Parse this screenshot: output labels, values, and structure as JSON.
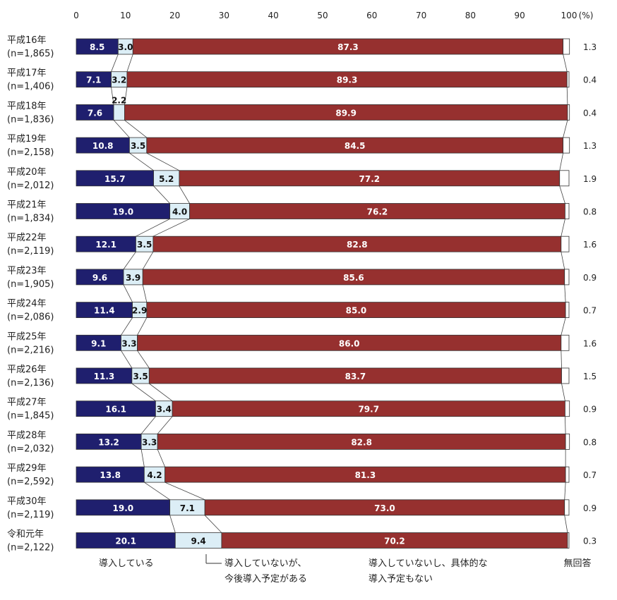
{
  "chart_data": {
    "type": "bar",
    "orientation": "horizontal",
    "stacked": true,
    "percent_unit": "(%)",
    "xlim": [
      0,
      100
    ],
    "x_ticks": [
      "0",
      "10",
      "20",
      "30",
      "40",
      "50",
      "60",
      "70",
      "80",
      "90",
      "100"
    ],
    "categories": [
      {
        "label": "平成16年",
        "n": "(n=1,865)"
      },
      {
        "label": "平成17年",
        "n": "(n=1,406)"
      },
      {
        "label": "平成18年",
        "n": "(n=1,836)"
      },
      {
        "label": "平成19年",
        "n": "(n=2,158)"
      },
      {
        "label": "平成20年",
        "n": "(n=2,012)"
      },
      {
        "label": "平成21年",
        "n": "(n=1,834)"
      },
      {
        "label": "平成22年",
        "n": "(n=2,119)"
      },
      {
        "label": "平成23年",
        "n": "(n=1,905)"
      },
      {
        "label": "平成24年",
        "n": "(n=2,086)"
      },
      {
        "label": "平成25年",
        "n": "(n=2,216)"
      },
      {
        "label": "平成26年",
        "n": "(n=2,136)"
      },
      {
        "label": "平成27年",
        "n": "(n=1,845)"
      },
      {
        "label": "平成28年",
        "n": "(n=2,032)"
      },
      {
        "label": "平成29年",
        "n": "(n=2,592)"
      },
      {
        "label": "平成30年",
        "n": "(n=2,119)"
      },
      {
        "label": "令和元年",
        "n": "(n=2,122)"
      }
    ],
    "series": [
      {
        "name": "導入している",
        "color": "#1f1f6e",
        "values": [
          8.5,
          7.1,
          7.6,
          10.8,
          15.7,
          19.0,
          12.1,
          9.6,
          11.4,
          9.1,
          11.3,
          16.1,
          13.2,
          13.8,
          19.0,
          20.1
        ]
      },
      {
        "name": "導入していないが、\n今後導入予定がある",
        "color": "#dceef6",
        "values": [
          3.0,
          3.2,
          2.2,
          3.5,
          5.2,
          4.0,
          3.5,
          3.9,
          2.9,
          3.3,
          3.5,
          3.4,
          3.3,
          4.2,
          7.1,
          9.4
        ]
      },
      {
        "name": "導入していないし、具体的な\n導入予定もない",
        "color": "#96302f",
        "values": [
          87.3,
          89.3,
          89.9,
          84.5,
          77.2,
          76.2,
          82.8,
          85.6,
          85.0,
          86.0,
          83.7,
          79.7,
          82.8,
          81.3,
          73.0,
          70.2
        ]
      },
      {
        "name": "無回答",
        "color": "#ffffff",
        "values": [
          1.3,
          0.4,
          0.4,
          1.3,
          1.9,
          0.8,
          1.6,
          0.9,
          0.7,
          1.6,
          1.5,
          0.9,
          0.8,
          0.7,
          0.9,
          0.3
        ]
      }
    ],
    "value_labels": {
      "s0": [
        "8.5",
        "7.1",
        "7.6",
        "10.8",
        "15.7",
        "19.0",
        "12.1",
        "9.6",
        "11.4",
        "9.1",
        "11.3",
        "16.1",
        "13.2",
        "13.8",
        "19.0",
        "20.1"
      ],
      "s1": [
        "3.0",
        "3.2",
        "2.2",
        "3.5",
        "5.2",
        "4.0",
        "3.5",
        "3.9",
        "2.9",
        "3.3",
        "3.5",
        "3.4",
        "3.3",
        "4.2",
        "7.1",
        "9.4"
      ],
      "s2": [
        "87.3",
        "89.3",
        "89.9",
        "84.5",
        "77.2",
        "76.2",
        "82.8",
        "85.6",
        "85.0",
        "86.0",
        "83.7",
        "79.7",
        "82.8",
        "81.3",
        "73.0",
        "70.2"
      ],
      "s3": [
        "1.3",
        "0.4",
        "0.4",
        "1.3",
        "1.9",
        "0.8",
        "1.6",
        "0.9",
        "0.7",
        "1.6",
        "1.5",
        "0.9",
        "0.8",
        "0.7",
        "0.9",
        "0.3"
      ]
    },
    "connector_lines": true,
    "grid": false,
    "legend_placement": "bottom"
  }
}
